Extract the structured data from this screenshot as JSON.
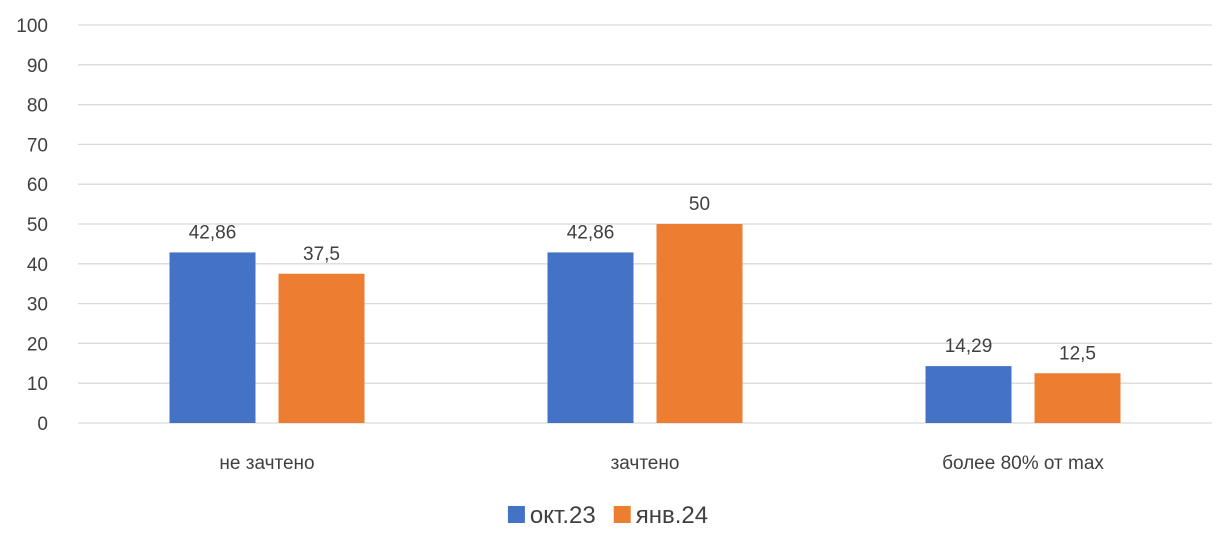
{
  "chart_data": {
    "type": "bar",
    "categories": [
      "не зачтено",
      "зачтено",
      "более 80% от max"
    ],
    "series": [
      {
        "name": "окт.23",
        "values": [
          42.86,
          42.86,
          14.29
        ],
        "labels": [
          "42,86",
          "42,86",
          "14,29"
        ],
        "color": "#4472C4"
      },
      {
        "name": "янв.24",
        "values": [
          37.5,
          50,
          12.5
        ],
        "labels": [
          "37,5",
          "50",
          "12,5"
        ],
        "color": "#ED7D31"
      }
    ],
    "ylim": [
      0,
      100
    ],
    "yticks": [
      0,
      10,
      20,
      30,
      40,
      50,
      60,
      70,
      80,
      90,
      100
    ],
    "grid": true,
    "legend": "bottom-center",
    "title": "",
    "xlabel": "",
    "ylabel": ""
  },
  "colors": {
    "gridline": "#D9D9D9",
    "axis_text": "#404040"
  }
}
